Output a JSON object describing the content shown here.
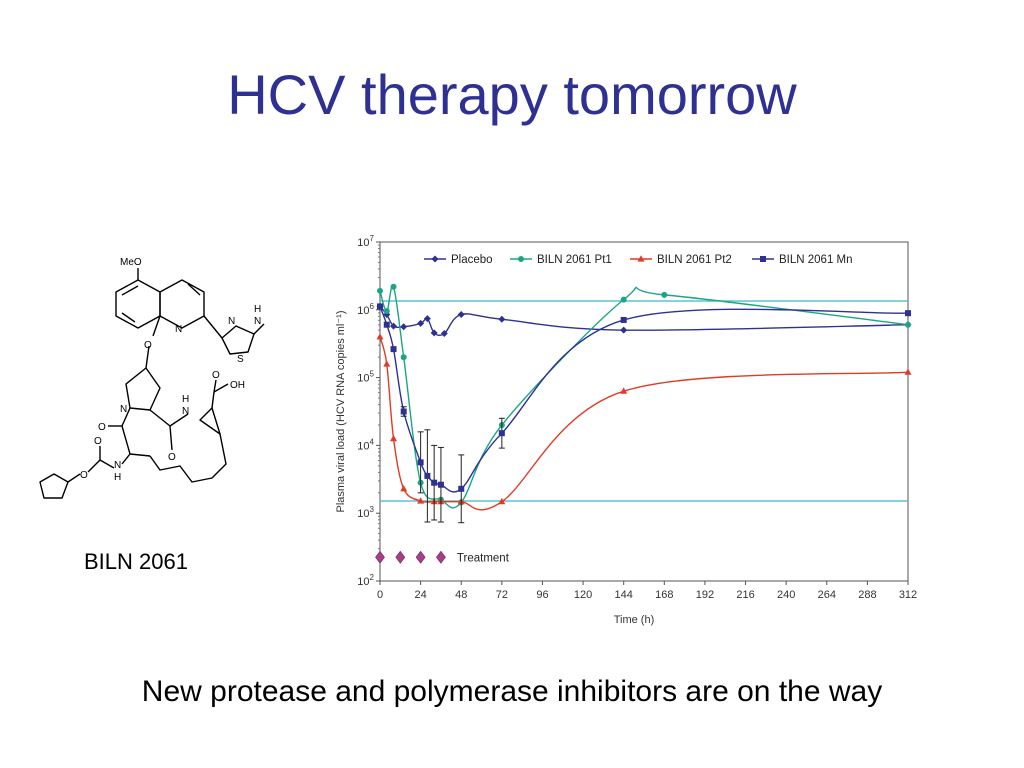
{
  "slide": {
    "title": "HCV therapy tomorrow",
    "compound_label": "BILN 2061",
    "caption": "New protease and polymerase inhibitors are on the way"
  },
  "molecule_labels": {
    "meo": "MeO",
    "n_quin": "N",
    "o_ether": "O",
    "n_thiazole": "N",
    "s_thiazole": "S",
    "nh_h": "H",
    "nh_n": "N",
    "n_pro": "N",
    "o_pro": "O",
    "nh2_h": "H",
    "nh2_n": "N",
    "o_acid": "O",
    "oh_acid": "OH",
    "o_carb1": "O",
    "o_carb2": "O",
    "o_carb3": "O",
    "nh3_n": "N",
    "nh3_h": "H"
  },
  "chart_data": {
    "type": "line",
    "yscale": "log",
    "xlabel": "Time (h)",
    "ylabel": "Plasma viral load (HCV RNA copies ml⁻¹)",
    "xticks": [
      0,
      24,
      48,
      72,
      96,
      120,
      144,
      168,
      192,
      216,
      240,
      264,
      288,
      312
    ],
    "xlim": [
      0,
      312
    ],
    "yticks": [
      {
        "exp": 2,
        "label": "10",
        "sup": "2"
      },
      {
        "exp": 3,
        "label": "10",
        "sup": "3"
      },
      {
        "exp": 4,
        "label": "10",
        "sup": "4"
      },
      {
        "exp": 5,
        "label": "10",
        "sup": "5"
      },
      {
        "exp": 6,
        "label": "10",
        "sup": "6"
      },
      {
        "exp": 7,
        "label": "10",
        "sup": "7"
      }
    ],
    "ylim_exp": [
      2,
      7
    ],
    "reference_lines_exp": [
      6.13,
      3.18
    ],
    "legend_position": "top",
    "treatment": {
      "label": "Treatment",
      "times": [
        0,
        12,
        24,
        36
      ],
      "y_exp": 2.35,
      "color": "#b03a8a"
    },
    "series": [
      {
        "name": "Placebo",
        "color": "#2e3192",
        "marker": "diamond",
        "points": [
          [
            0,
            6.05
          ],
          [
            4,
            5.93
          ],
          [
            8,
            5.76
          ],
          [
            14,
            5.75
          ],
          [
            24,
            5.8
          ],
          [
            28,
            5.87
          ],
          [
            32,
            5.66
          ],
          [
            38,
            5.65
          ],
          [
            48,
            5.93
          ],
          [
            72,
            5.86
          ],
          [
            144,
            5.7
          ],
          [
            312,
            5.78
          ]
        ]
      },
      {
        "name": "BILN 2061 Pt1",
        "color": "#1ba585",
        "marker": "circle",
        "points": [
          [
            0,
            6.28
          ],
          [
            4,
            5.98
          ],
          [
            8,
            6.34
          ],
          [
            14,
            5.3
          ],
          [
            24,
            3.45
          ],
          [
            36,
            3.2
          ],
          [
            48,
            3.16
          ],
          [
            72,
            4.3
          ],
          [
            144,
            6.15
          ],
          [
            168,
            6.22
          ],
          [
            312,
            5.78
          ]
        ]
      },
      {
        "name": "BILN 2061 Pt2",
        "color": "#e03b26",
        "marker": "triangle",
        "points": [
          [
            0,
            5.6
          ],
          [
            4,
            5.2
          ],
          [
            8,
            4.1
          ],
          [
            14,
            3.36
          ],
          [
            24,
            3.18
          ],
          [
            32,
            3.17
          ],
          [
            36,
            3.17
          ],
          [
            48,
            3.17
          ],
          [
            72,
            3.17
          ],
          [
            144,
            4.8
          ],
          [
            312,
            5.08
          ]
        ]
      },
      {
        "name": "BILN 2061 Mn",
        "color": "#2e3192",
        "marker": "square",
        "points": [
          [
            0,
            6.05
          ],
          [
            4,
            5.78
          ],
          [
            8,
            5.42
          ],
          [
            14,
            4.5
          ],
          [
            24,
            3.75
          ],
          [
            28,
            3.55
          ],
          [
            32,
            3.45
          ],
          [
            36,
            3.42
          ],
          [
            48,
            3.36
          ],
          [
            72,
            4.18
          ],
          [
            144,
            5.85
          ],
          [
            312,
            5.95
          ]
        ],
        "errors": [
          [
            14,
            0.07
          ],
          [
            24,
            0.45
          ],
          [
            28,
            0.68
          ],
          [
            32,
            0.55
          ],
          [
            36,
            0.55
          ],
          [
            48,
            0.5
          ],
          [
            72,
            0.22
          ]
        ]
      }
    ]
  }
}
